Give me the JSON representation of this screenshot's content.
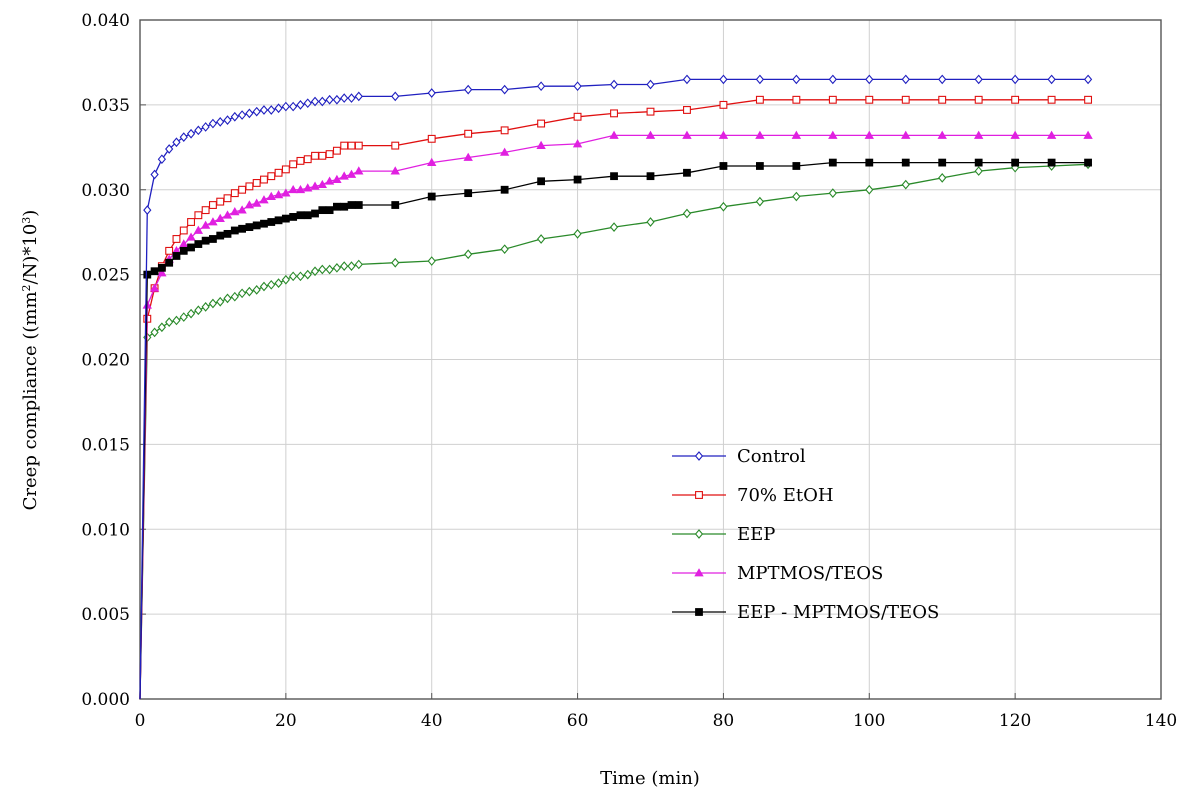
{
  "chart_data": {
    "type": "line",
    "title": "",
    "xlabel": "Time (min)",
    "ylabel": "Creep compliance ((mm²/N)*10³)",
    "ylabel_parts": [
      "Creep compliance ((mm",
      "2",
      "/N)*10",
      "3",
      ")"
    ],
    "xlim": [
      0,
      140
    ],
    "ylim": [
      0,
      0.04
    ],
    "xticks": [
      0,
      20,
      40,
      60,
      80,
      100,
      120,
      140
    ],
    "xtick_labels": [
      "0",
      "20",
      "40",
      "60",
      "80",
      "100",
      "120",
      "140"
    ],
    "yticks": [
      0,
      0.005,
      0.01,
      0.015,
      0.02,
      0.025,
      0.03,
      0.035,
      0.04
    ],
    "ytick_labels": [
      "0.000",
      "0.005",
      "0.010",
      "0.015",
      "0.020",
      "0.025",
      "0.030",
      "0.035",
      "0.040"
    ],
    "grid": true,
    "legend_position": "lower-right",
    "series": [
      {
        "name": "Control",
        "color": "#2020c0",
        "marker": "diamond-open",
        "points": [
          [
            0,
            0
          ],
          [
            1,
            0.0288
          ],
          [
            2,
            0.0309
          ],
          [
            3,
            0.0318
          ],
          [
            4,
            0.0324
          ],
          [
            5,
            0.0328
          ],
          [
            6,
            0.0331
          ],
          [
            7,
            0.0333
          ],
          [
            8,
            0.0335
          ],
          [
            9,
            0.0337
          ],
          [
            10,
            0.0339
          ],
          [
            11,
            0.034
          ],
          [
            12,
            0.0341
          ],
          [
            13,
            0.0343
          ],
          [
            14,
            0.0344
          ],
          [
            15,
            0.0345
          ],
          [
            16,
            0.0346
          ],
          [
            17,
            0.0347
          ],
          [
            18,
            0.0347
          ],
          [
            19,
            0.0348
          ],
          [
            20,
            0.0349
          ],
          [
            21,
            0.0349
          ],
          [
            22,
            0.035
          ],
          [
            23,
            0.0351
          ],
          [
            24,
            0.0352
          ],
          [
            25,
            0.0352
          ],
          [
            26,
            0.0353
          ],
          [
            27,
            0.0353
          ],
          [
            28,
            0.0354
          ],
          [
            29,
            0.0354
          ],
          [
            30,
            0.0355
          ],
          [
            35,
            0.0355
          ],
          [
            40,
            0.0357
          ],
          [
            45,
            0.0359
          ],
          [
            50,
            0.0359
          ],
          [
            55,
            0.0361
          ],
          [
            60,
            0.0361
          ],
          [
            65,
            0.0362
          ],
          [
            70,
            0.0362
          ],
          [
            75,
            0.0365
          ],
          [
            80,
            0.0365
          ],
          [
            85,
            0.0365
          ],
          [
            90,
            0.0365
          ],
          [
            95,
            0.0365
          ],
          [
            100,
            0.0365
          ],
          [
            105,
            0.0365
          ],
          [
            110,
            0.0365
          ],
          [
            115,
            0.0365
          ],
          [
            120,
            0.0365
          ],
          [
            125,
            0.0365
          ],
          [
            130,
            0.0365
          ]
        ]
      },
      {
        "name": "70% EtOH",
        "color": "#e01010",
        "marker": "square-open",
        "points": [
          [
            0,
            0
          ],
          [
            1,
            0.0224
          ],
          [
            2,
            0.0242
          ],
          [
            3,
            0.0255
          ],
          [
            4,
            0.0264
          ],
          [
            5,
            0.0271
          ],
          [
            6,
            0.0276
          ],
          [
            7,
            0.0281
          ],
          [
            8,
            0.0285
          ],
          [
            9,
            0.0288
          ],
          [
            10,
            0.0291
          ],
          [
            11,
            0.0293
          ],
          [
            12,
            0.0295
          ],
          [
            13,
            0.0298
          ],
          [
            14,
            0.03
          ],
          [
            15,
            0.0302
          ],
          [
            16,
            0.0304
          ],
          [
            17,
            0.0306
          ],
          [
            18,
            0.0308
          ],
          [
            19,
            0.031
          ],
          [
            20,
            0.0312
          ],
          [
            21,
            0.0315
          ],
          [
            22,
            0.0317
          ],
          [
            23,
            0.0318
          ],
          [
            24,
            0.032
          ],
          [
            25,
            0.032
          ],
          [
            26,
            0.0321
          ],
          [
            27,
            0.0323
          ],
          [
            28,
            0.0326
          ],
          [
            29,
            0.0326
          ],
          [
            30,
            0.0326
          ],
          [
            35,
            0.0326
          ],
          [
            40,
            0.033
          ],
          [
            45,
            0.0333
          ],
          [
            50,
            0.0335
          ],
          [
            55,
            0.0339
          ],
          [
            60,
            0.0343
          ],
          [
            65,
            0.0345
          ],
          [
            70,
            0.0346
          ],
          [
            75,
            0.0347
          ],
          [
            80,
            0.035
          ],
          [
            85,
            0.0353
          ],
          [
            90,
            0.0353
          ],
          [
            95,
            0.0353
          ],
          [
            100,
            0.0353
          ],
          [
            105,
            0.0353
          ],
          [
            110,
            0.0353
          ],
          [
            115,
            0.0353
          ],
          [
            120,
            0.0353
          ],
          [
            125,
            0.0353
          ],
          [
            130,
            0.0353
          ]
        ]
      },
      {
        "name": "EEP",
        "color": "#2a8a2a",
        "marker": "diamond-open",
        "points": [
          [
            0,
            0
          ],
          [
            1,
            0.0213
          ],
          [
            2,
            0.0216
          ],
          [
            3,
            0.0219
          ],
          [
            4,
            0.0222
          ],
          [
            5,
            0.0223
          ],
          [
            6,
            0.0225
          ],
          [
            7,
            0.0227
          ],
          [
            8,
            0.0229
          ],
          [
            9,
            0.0231
          ],
          [
            10,
            0.0233
          ],
          [
            11,
            0.0234
          ],
          [
            12,
            0.0236
          ],
          [
            13,
            0.0237
          ],
          [
            14,
            0.0239
          ],
          [
            15,
            0.024
          ],
          [
            16,
            0.0241
          ],
          [
            17,
            0.0243
          ],
          [
            18,
            0.0244
          ],
          [
            19,
            0.0245
          ],
          [
            20,
            0.0247
          ],
          [
            21,
            0.0249
          ],
          [
            22,
            0.0249
          ],
          [
            23,
            0.025
          ],
          [
            24,
            0.0252
          ],
          [
            25,
            0.0253
          ],
          [
            26,
            0.0253
          ],
          [
            27,
            0.0254
          ],
          [
            28,
            0.0255
          ],
          [
            29,
            0.0255
          ],
          [
            30,
            0.0256
          ],
          [
            35,
            0.0257
          ],
          [
            40,
            0.0258
          ],
          [
            45,
            0.0262
          ],
          [
            50,
            0.0265
          ],
          [
            55,
            0.0271
          ],
          [
            60,
            0.0274
          ],
          [
            65,
            0.0278
          ],
          [
            70,
            0.0281
          ],
          [
            75,
            0.0286
          ],
          [
            80,
            0.029
          ],
          [
            85,
            0.0293
          ],
          [
            90,
            0.0296
          ],
          [
            95,
            0.0298
          ],
          [
            100,
            0.03
          ],
          [
            105,
            0.0303
          ],
          [
            110,
            0.0307
          ],
          [
            115,
            0.0311
          ],
          [
            120,
            0.0313
          ],
          [
            125,
            0.0314
          ],
          [
            130,
            0.0315
          ]
        ]
      },
      {
        "name": "MPTMOS/TEOS",
        "color": "#e020e0",
        "marker": "triangle-filled",
        "points": [
          [
            0,
            0
          ],
          [
            1,
            0.0232
          ],
          [
            2,
            0.0242
          ],
          [
            3,
            0.0251
          ],
          [
            4,
            0.0259
          ],
          [
            5,
            0.0264
          ],
          [
            6,
            0.0268
          ],
          [
            7,
            0.0272
          ],
          [
            8,
            0.0276
          ],
          [
            9,
            0.0279
          ],
          [
            10,
            0.0281
          ],
          [
            11,
            0.0283
          ],
          [
            12,
            0.0285
          ],
          [
            13,
            0.0287
          ],
          [
            14,
            0.0288
          ],
          [
            15,
            0.0291
          ],
          [
            16,
            0.0292
          ],
          [
            17,
            0.0294
          ],
          [
            18,
            0.0296
          ],
          [
            19,
            0.0297
          ],
          [
            20,
            0.0298
          ],
          [
            21,
            0.03
          ],
          [
            22,
            0.03
          ],
          [
            23,
            0.0301
          ],
          [
            24,
            0.0302
          ],
          [
            25,
            0.0303
          ],
          [
            26,
            0.0305
          ],
          [
            27,
            0.0306
          ],
          [
            28,
            0.0308
          ],
          [
            29,
            0.0309
          ],
          [
            30,
            0.0311
          ],
          [
            35,
            0.0311
          ],
          [
            40,
            0.0316
          ],
          [
            45,
            0.0319
          ],
          [
            50,
            0.0322
          ],
          [
            55,
            0.0326
          ],
          [
            60,
            0.0327
          ],
          [
            65,
            0.0332
          ],
          [
            70,
            0.0332
          ],
          [
            75,
            0.0332
          ],
          [
            80,
            0.0332
          ],
          [
            85,
            0.0332
          ],
          [
            90,
            0.0332
          ],
          [
            95,
            0.0332
          ],
          [
            100,
            0.0332
          ],
          [
            105,
            0.0332
          ],
          [
            110,
            0.0332
          ],
          [
            115,
            0.0332
          ],
          [
            120,
            0.0332
          ],
          [
            125,
            0.0332
          ],
          [
            130,
            0.0332
          ]
        ]
      },
      {
        "name": "EEP - MPTMOS/TEOS",
        "color": "#000000",
        "marker": "square-filled",
        "points": [
          [
            0,
            0
          ],
          [
            1,
            0.025
          ],
          [
            2,
            0.0252
          ],
          [
            3,
            0.0254
          ],
          [
            4,
            0.0257
          ],
          [
            5,
            0.0261
          ],
          [
            6,
            0.0264
          ],
          [
            7,
            0.0266
          ],
          [
            8,
            0.0268
          ],
          [
            9,
            0.027
          ],
          [
            10,
            0.0271
          ],
          [
            11,
            0.0273
          ],
          [
            12,
            0.0274
          ],
          [
            13,
            0.0276
          ],
          [
            14,
            0.0277
          ],
          [
            15,
            0.0278
          ],
          [
            16,
            0.0279
          ],
          [
            17,
            0.028
          ],
          [
            18,
            0.0281
          ],
          [
            19,
            0.0282
          ],
          [
            20,
            0.0283
          ],
          [
            21,
            0.0284
          ],
          [
            22,
            0.0285
          ],
          [
            23,
            0.0285
          ],
          [
            24,
            0.0286
          ],
          [
            25,
            0.0288
          ],
          [
            26,
            0.0288
          ],
          [
            27,
            0.029
          ],
          [
            28,
            0.029
          ],
          [
            29,
            0.0291
          ],
          [
            30,
            0.0291
          ],
          [
            35,
            0.0291
          ],
          [
            40,
            0.0296
          ],
          [
            45,
            0.0298
          ],
          [
            50,
            0.03
          ],
          [
            55,
            0.0305
          ],
          [
            60,
            0.0306
          ],
          [
            65,
            0.0308
          ],
          [
            70,
            0.0308
          ],
          [
            75,
            0.031
          ],
          [
            80,
            0.0314
          ],
          [
            85,
            0.0314
          ],
          [
            90,
            0.0314
          ],
          [
            95,
            0.0316
          ],
          [
            100,
            0.0316
          ],
          [
            105,
            0.0316
          ],
          [
            110,
            0.0316
          ],
          [
            115,
            0.0316
          ],
          [
            120,
            0.0316
          ],
          [
            125,
            0.0316
          ],
          [
            130,
            0.0316
          ]
        ]
      }
    ]
  }
}
